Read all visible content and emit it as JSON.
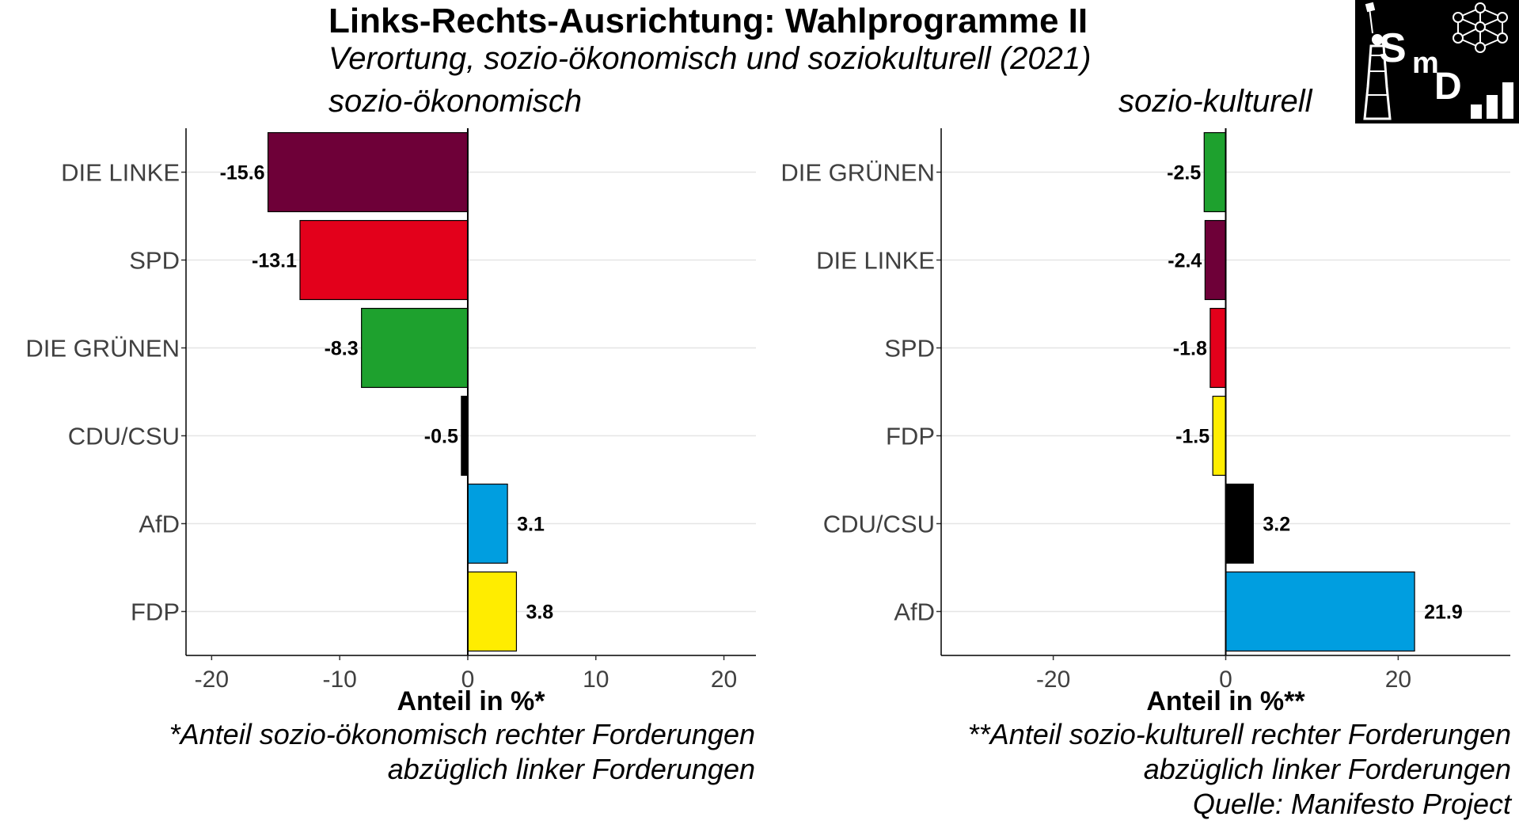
{
  "title": "Links-Rechts-Ausrichtung: Wahlprogramme II",
  "subtitle": "Verortung, sozio-ökonomisch und soziokulturell (2021)",
  "logo": {
    "text_s": "S",
    "text_m": "m",
    "text_d": "D"
  },
  "colors": {
    "DIE LINKE": "#6e0038",
    "SPD": "#e3001b",
    "DIE GRÜNEN": "#1ea12e",
    "CDU/CSU": "#000000",
    "AfD": "#009ee0",
    "FDP": "#ffed00"
  },
  "chart_data": [
    {
      "type": "bar",
      "orientation": "horizontal",
      "title": "sozio-ökonomisch",
      "categories": [
        "DIE LINKE",
        "SPD",
        "DIE GRÜNEN",
        "CDU/CSU",
        "AfD",
        "FDP"
      ],
      "values": [
        -15.6,
        -13.1,
        -8.3,
        -0.5,
        3.1,
        3.8
      ],
      "value_labels": [
        "-15.6",
        "-13.1",
        "-8.3",
        "-0.5",
        "3.1",
        "3.8"
      ],
      "xlabel": "Anteil in %*",
      "xlim": [
        -22,
        22.5
      ],
      "xticks": [
        -20,
        -10,
        0,
        10,
        20
      ],
      "xtick_labels": [
        "-20",
        "-10",
        "0",
        "10",
        "20"
      ],
      "grid": "horizontal-major",
      "footnote": [
        "*Anteil sozio-ökonomisch rechter Forderungen",
        "abzüglich linker Forderungen"
      ]
    },
    {
      "type": "bar",
      "orientation": "horizontal",
      "title": "sozio-kulturell",
      "categories": [
        "DIE GRÜNEN",
        "DIE LINKE",
        "SPD",
        "FDP",
        "CDU/CSU",
        "AfD"
      ],
      "values": [
        -2.5,
        -2.4,
        -1.8,
        -1.5,
        3.2,
        21.9
      ],
      "value_labels": [
        "-2.5",
        "-2.4",
        "-1.8",
        "-1.5",
        "3.2",
        "21.9"
      ],
      "xlabel": "Anteil in %**",
      "xlim": [
        -33,
        33
      ],
      "xticks": [
        -20,
        0,
        20
      ],
      "xtick_labels": [
        "-20",
        "0",
        "20"
      ],
      "grid": "horizontal-major",
      "footnote": [
        "**Anteil sozio-kulturell rechter Forderungen",
        "abzüglich linker Forderungen",
        "Quelle: Manifesto Project"
      ]
    }
  ]
}
